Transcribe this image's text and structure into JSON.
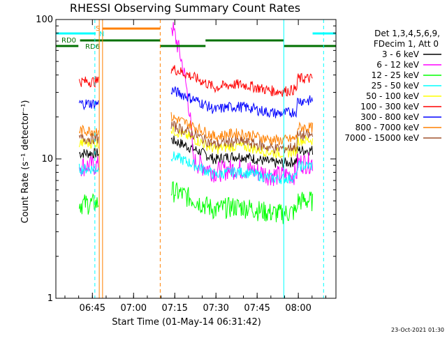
{
  "chart_data": {
    "type": "line",
    "title": "RHESSI Observing Summary Count Rates",
    "xlabel": "Start Time (01-May-14 06:31:42)",
    "ylabel": "Count Rate (s⁻¹ detector⁻¹)",
    "yscale": "log",
    "ylim": [
      1,
      100
    ],
    "xlim_min": [
      0,
      102
    ],
    "x_unit": "minutes since 06:31:42",
    "x_ticks": [
      {
        "label": "06:45",
        "value": 13.3
      },
      {
        "label": "07:00",
        "value": 28.3
      },
      {
        "label": "07:15",
        "value": 43.3
      },
      {
        "label": "07:30",
        "value": 58.3
      },
      {
        "label": "07:45",
        "value": 73.3
      },
      {
        "label": "08:00",
        "value": 88.3
      }
    ],
    "y_ticks": [
      {
        "label": "1",
        "value": 1
      },
      {
        "label": "10",
        "value": 10
      },
      {
        "label": "100",
        "value": 100
      }
    ],
    "legend": {
      "header1": "Det 1,3,4,5,6,9,",
      "header2": "FDecim 1, Att 0",
      "placement": "right"
    },
    "series": [
      {
        "name": "3 - 6 keV",
        "color": "#000000",
        "base": 11
      },
      {
        "name": "6 - 12 keV",
        "color": "#ff00ff",
        "base": 9
      },
      {
        "name": "12 - 25 keV",
        "color": "#00ff00",
        "base": 4.8
      },
      {
        "name": "25 - 50 keV",
        "color": "#00ffff",
        "base": 8.5
      },
      {
        "name": "50 - 100 keV",
        "color": "#ffff00",
        "base": 13
      },
      {
        "name": "100 - 300 keV",
        "color": "#ff0000",
        "base": 36
      },
      {
        "name": "300 - 800 keV",
        "color": "#0000ff",
        "base": 25
      },
      {
        "name": "800 - 7000 keV",
        "color": "#ff8000",
        "base": 16
      },
      {
        "name": "7000 - 15000 keV",
        "color": "#a0522d",
        "base": 14
      }
    ],
    "data_windows": [
      {
        "start": 8.5,
        "end": 15.5
      },
      {
        "start": 42.0,
        "end": 93.5
      }
    ],
    "flags": [
      {
        "label": "RD0",
        "color": "#007000"
      },
      {
        "label": "RD6",
        "color": "#007000"
      },
      {
        "label": "S",
        "color": "#ff8000"
      },
      {
        "label": "N",
        "color": "#00ffff"
      }
    ],
    "timestamp": "23-Oct-2021 01:30"
  }
}
